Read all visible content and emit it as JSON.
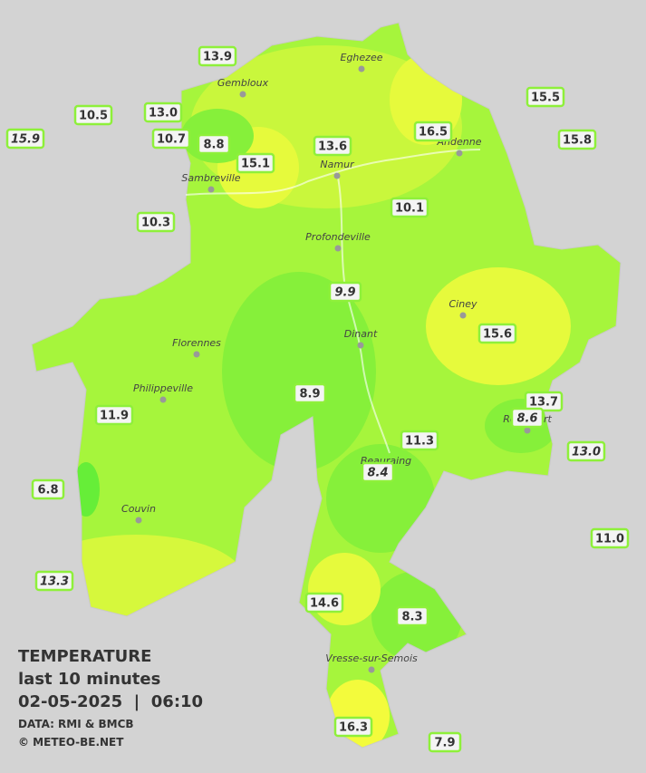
{
  "towns": [
    "Eghezee",
    "Gembloux",
    "Andenne",
    "Namur",
    "Sambreville",
    "Profondeville",
    "Ciney",
    "Dinant",
    "Florennes",
    "Philippeville",
    "Rochefort",
    "Beauraing",
    "Couvin",
    "Vresse-sur-Semois"
  ],
  "stations": [
    {
      "label": "13.9",
      "italic": false
    },
    {
      "label": "10.5",
      "italic": false
    },
    {
      "label": "13.0",
      "italic": false
    },
    {
      "label": "15.9",
      "italic": true
    },
    {
      "label": "10.7",
      "italic": false
    },
    {
      "label": "8.8",
      "italic": false
    },
    {
      "label": "15.1",
      "italic": false
    },
    {
      "label": "13.6",
      "italic": false
    },
    {
      "label": "16.5",
      "italic": false
    },
    {
      "label": "15.5",
      "italic": false
    },
    {
      "label": "15.8",
      "italic": false
    },
    {
      "label": "10.3",
      "italic": false
    },
    {
      "label": "10.1",
      "italic": false
    },
    {
      "label": "9.9",
      "italic": true
    },
    {
      "label": "15.6",
      "italic": false
    },
    {
      "label": "8.9",
      "italic": false
    },
    {
      "label": "13.7",
      "italic": false
    },
    {
      "label": "8.6",
      "italic": true
    },
    {
      "label": "11.9",
      "italic": false
    },
    {
      "label": "11.3",
      "italic": false
    },
    {
      "label": "13.0",
      "italic": true
    },
    {
      "label": "8.4",
      "italic": true
    },
    {
      "label": "6.8",
      "italic": false
    },
    {
      "label": "11.0",
      "italic": false
    },
    {
      "label": "13.3",
      "italic": true
    },
    {
      "label": "14.6",
      "italic": false
    },
    {
      "label": "8.3",
      "italic": false
    },
    {
      "label": "16.3",
      "italic": false
    },
    {
      "label": "7.9",
      "italic": false
    }
  ],
  "legend": {
    "title": "TEMPERATURE",
    "period": "last 10 minutes",
    "datetime": "02-05-2025  |  06:10",
    "source": "DATA: RMI & BMCB",
    "copyright": "© METEO-BE.NET"
  }
}
